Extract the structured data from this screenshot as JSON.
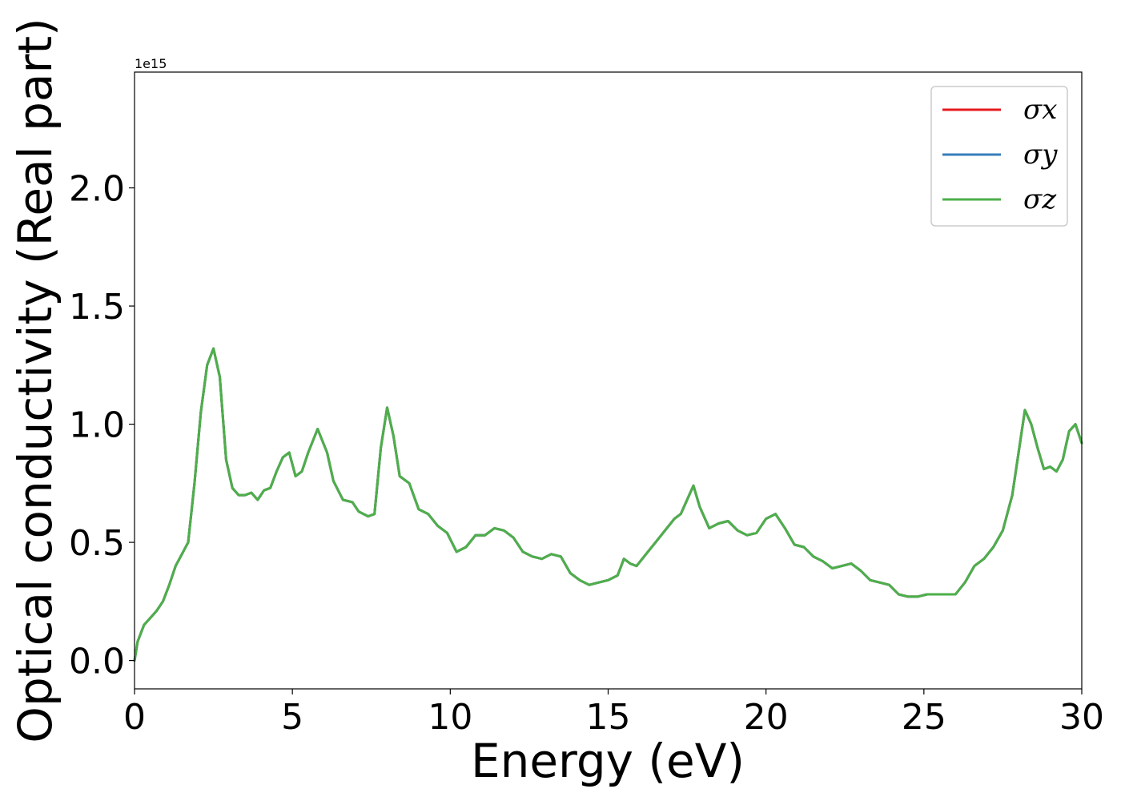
{
  "chart_data": {
    "type": "line",
    "xlabel": "Energy (eV)",
    "ylabel": "Optical conductivity (Real part)",
    "y_offset_label": "1e15",
    "xlim": [
      0,
      30
    ],
    "ylim": [
      -0.12,
      2.49
    ],
    "xticks": [
      0,
      5,
      10,
      15,
      20,
      25,
      30
    ],
    "xtick_labels": [
      "0",
      "5",
      "10",
      "15",
      "20",
      "25",
      "30"
    ],
    "yticks": [
      0.0,
      0.5,
      1.0,
      1.5,
      2.0
    ],
    "ytick_labels": [
      "0.0",
      "0.5",
      "1.0",
      "1.5",
      "2.0"
    ],
    "grid": false,
    "legend_position": "top-right",
    "x": [
      0,
      0.1,
      0.3,
      0.5,
      0.7,
      0.9,
      1.1,
      1.3,
      1.5,
      1.7,
      1.9,
      2.1,
      2.3,
      2.5,
      2.7,
      2.9,
      3.1,
      3.3,
      3.5,
      3.7,
      3.9,
      4.1,
      4.3,
      4.5,
      4.7,
      4.9,
      5.1,
      5.3,
      5.5,
      5.8,
      6.1,
      6.3,
      6.6,
      6.9,
      7.1,
      7.4,
      7.6,
      7.8,
      8.0,
      8.2,
      8.4,
      8.7,
      9.0,
      9.3,
      9.6,
      9.9,
      10.2,
      10.5,
      10.8,
      11.1,
      11.4,
      11.7,
      12.0,
      12.3,
      12.6,
      12.9,
      13.2,
      13.5,
      13.8,
      14.1,
      14.4,
      14.7,
      15.0,
      15.3,
      15.5,
      15.7,
      15.9,
      16.2,
      16.5,
      16.8,
      17.1,
      17.3,
      17.5,
      17.7,
      17.9,
      18.2,
      18.5,
      18.8,
      19.1,
      19.4,
      19.7,
      20.0,
      20.3,
      20.6,
      20.9,
      21.2,
      21.5,
      21.8,
      22.1,
      22.4,
      22.7,
      23.0,
      23.3,
      23.6,
      23.9,
      24.2,
      24.5,
      24.8,
      25.1,
      25.4,
      25.7,
      26.0,
      26.3,
      26.6,
      26.9,
      27.2,
      27.5,
      27.8,
      28.0,
      28.2,
      28.4,
      28.6,
      28.8,
      29.0,
      29.2,
      29.4,
      29.6,
      29.8,
      30.0
    ],
    "series": [
      {
        "name": "σx",
        "color": "#e41a1c",
        "values": [
          0.0,
          0.08,
          0.15,
          0.18,
          0.21,
          0.25,
          0.32,
          0.4,
          0.45,
          0.5,
          0.75,
          1.05,
          1.25,
          1.32,
          1.2,
          0.85,
          0.73,
          0.7,
          0.7,
          0.71,
          0.68,
          0.72,
          0.73,
          0.8,
          0.86,
          0.88,
          0.78,
          0.8,
          0.88,
          0.98,
          0.88,
          0.76,
          0.68,
          0.67,
          0.63,
          0.61,
          0.62,
          0.9,
          1.07,
          0.95,
          0.78,
          0.75,
          0.64,
          0.62,
          0.57,
          0.54,
          0.46,
          0.48,
          0.53,
          0.53,
          0.56,
          0.55,
          0.52,
          0.46,
          0.44,
          0.43,
          0.45,
          0.44,
          0.37,
          0.34,
          0.32,
          0.33,
          0.34,
          0.36,
          0.43,
          0.41,
          0.4,
          0.45,
          0.5,
          0.55,
          0.6,
          0.62,
          0.68,
          0.74,
          0.65,
          0.56,
          0.58,
          0.59,
          0.55,
          0.53,
          0.54,
          0.6,
          0.62,
          0.56,
          0.49,
          0.48,
          0.44,
          0.42,
          0.39,
          0.4,
          0.41,
          0.38,
          0.34,
          0.33,
          0.32,
          0.28,
          0.27,
          0.27,
          0.28,
          0.28,
          0.28,
          0.28,
          0.33,
          0.4,
          0.43,
          0.48,
          0.55,
          0.7,
          0.88,
          1.06,
          1.0,
          0.9,
          0.81,
          0.82,
          0.8,
          0.85,
          0.97,
          1.0,
          0.92
        ]
      },
      {
        "name": "σy",
        "color": "#377eb8",
        "values": [
          0.0,
          0.08,
          0.15,
          0.18,
          0.21,
          0.25,
          0.32,
          0.4,
          0.45,
          0.5,
          0.75,
          1.05,
          1.25,
          1.32,
          1.2,
          0.85,
          0.73,
          0.7,
          0.7,
          0.71,
          0.68,
          0.72,
          0.73,
          0.8,
          0.86,
          0.88,
          0.78,
          0.8,
          0.88,
          0.98,
          0.88,
          0.76,
          0.68,
          0.67,
          0.63,
          0.61,
          0.62,
          0.9,
          1.07,
          0.95,
          0.78,
          0.75,
          0.64,
          0.62,
          0.57,
          0.54,
          0.46,
          0.48,
          0.53,
          0.53,
          0.56,
          0.55,
          0.52,
          0.46,
          0.44,
          0.43,
          0.45,
          0.44,
          0.37,
          0.34,
          0.32,
          0.33,
          0.34,
          0.36,
          0.43,
          0.41,
          0.4,
          0.45,
          0.5,
          0.55,
          0.6,
          0.62,
          0.68,
          0.74,
          0.65,
          0.56,
          0.58,
          0.59,
          0.55,
          0.53,
          0.54,
          0.6,
          0.62,
          0.56,
          0.49,
          0.48,
          0.44,
          0.42,
          0.39,
          0.4,
          0.41,
          0.38,
          0.34,
          0.33,
          0.32,
          0.28,
          0.27,
          0.27,
          0.28,
          0.28,
          0.28,
          0.28,
          0.33,
          0.4,
          0.43,
          0.48,
          0.55,
          0.7,
          0.88,
          1.06,
          1.0,
          0.9,
          0.81,
          0.82,
          0.8,
          0.85,
          0.97,
          1.0,
          0.92
        ]
      },
      {
        "name": "σz",
        "color": "#4daf4a",
        "values": [
          0.0,
          0.08,
          0.15,
          0.18,
          0.21,
          0.25,
          0.32,
          0.4,
          0.45,
          0.5,
          0.75,
          1.05,
          1.25,
          1.32,
          1.2,
          0.85,
          0.73,
          0.7,
          0.7,
          0.71,
          0.68,
          0.72,
          0.73,
          0.8,
          0.86,
          0.88,
          0.78,
          0.8,
          0.88,
          0.98,
          0.88,
          0.76,
          0.68,
          0.67,
          0.63,
          0.61,
          0.62,
          0.9,
          1.07,
          0.95,
          0.78,
          0.75,
          0.64,
          0.62,
          0.57,
          0.54,
          0.46,
          0.48,
          0.53,
          0.53,
          0.56,
          0.55,
          0.52,
          0.46,
          0.44,
          0.43,
          0.45,
          0.44,
          0.37,
          0.34,
          0.32,
          0.33,
          0.34,
          0.36,
          0.43,
          0.41,
          0.4,
          0.45,
          0.5,
          0.55,
          0.6,
          0.62,
          0.68,
          0.74,
          0.65,
          0.56,
          0.58,
          0.59,
          0.55,
          0.53,
          0.54,
          0.6,
          0.62,
          0.56,
          0.49,
          0.48,
          0.44,
          0.42,
          0.39,
          0.4,
          0.41,
          0.38,
          0.34,
          0.33,
          0.32,
          0.28,
          0.27,
          0.27,
          0.28,
          0.28,
          0.28,
          0.28,
          0.33,
          0.4,
          0.43,
          0.48,
          0.55,
          0.7,
          0.88,
          1.06,
          1.0,
          0.9,
          0.81,
          0.82,
          0.8,
          0.85,
          0.97,
          1.0,
          0.92
        ]
      }
    ]
  }
}
